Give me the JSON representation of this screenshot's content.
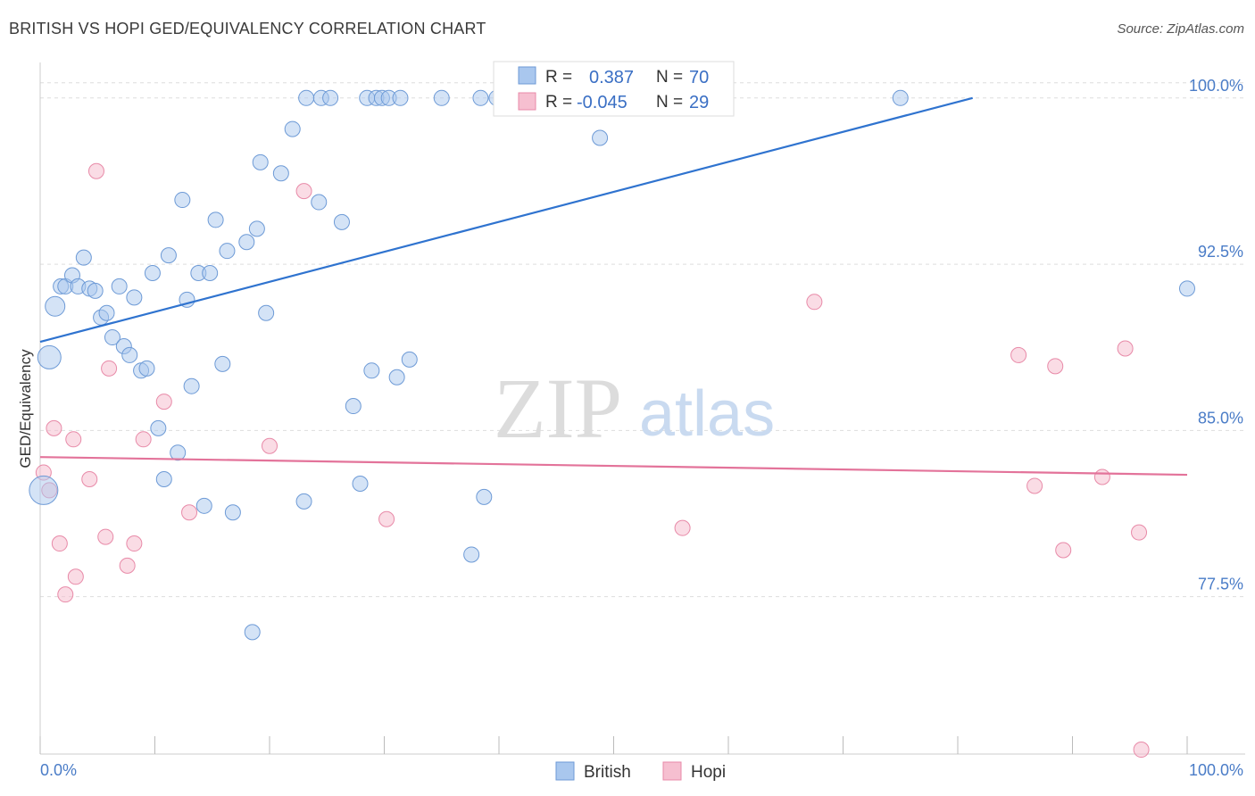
{
  "header": {
    "title": "BRITISH VS HOPI GED/EQUIVALENCY CORRELATION CHART",
    "source": "Source: ZipAtlas.com"
  },
  "watermark": {
    "zip": "ZIP",
    "atlas": "atlas"
  },
  "stats": {
    "british": {
      "r_label": "R =",
      "r_value": "0.387",
      "n_label": "N =",
      "n_value": "70"
    },
    "hopi": {
      "r_label": "R =",
      "r_value": "-0.045",
      "n_label": "N =",
      "n_value": "29"
    }
  },
  "legend": {
    "british": "British",
    "hopi": "Hopi"
  },
  "colors": {
    "british_fill": "#a9c7ee",
    "british_stroke": "#6d9ad6",
    "british_line": "#2f73cf",
    "hopi_fill": "#f6bfd0",
    "hopi_stroke": "#e88aa8",
    "hopi_line": "#e3739a",
    "grid": "#dddddd",
    "axis_label": "#4a7cc7"
  },
  "chart_data": {
    "type": "scatter",
    "ylabel": "GED/Equivalency",
    "xlabel": "",
    "xlim": [
      0,
      100
    ],
    "ylim": [
      70.4,
      101.2
    ],
    "x_tick_labels": [
      "0.0%",
      "100.0%"
    ],
    "y_ticks": [
      77.5,
      85.0,
      92.5,
      100.0
    ],
    "y_tick_labels": [
      "77.5%",
      "85.0%",
      "92.5%",
      "100.0%"
    ],
    "grid": true,
    "legend_position": "bottom-center",
    "series": [
      {
        "name": "British",
        "trend": {
          "x": [
            0,
            81.3
          ],
          "y": [
            89.0,
            100.0
          ]
        },
        "points": [
          {
            "x": 0.3,
            "y": 82.3,
            "s": 16
          },
          {
            "x": 0.8,
            "y": 88.3,
            "s": 13
          },
          {
            "x": 1.3,
            "y": 90.6,
            "s": 11
          },
          {
            "x": 1.8,
            "y": 91.5
          },
          {
            "x": 2.2,
            "y": 91.5
          },
          {
            "x": 2.8,
            "y": 92.0
          },
          {
            "x": 3.3,
            "y": 91.5
          },
          {
            "x": 3.8,
            "y": 92.8
          },
          {
            "x": 4.3,
            "y": 91.4
          },
          {
            "x": 4.8,
            "y": 91.3
          },
          {
            "x": 5.3,
            "y": 90.1
          },
          {
            "x": 5.8,
            "y": 90.3
          },
          {
            "x": 6.3,
            "y": 89.2
          },
          {
            "x": 7.3,
            "y": 88.8
          },
          {
            "x": 7.8,
            "y": 88.4
          },
          {
            "x": 6.9,
            "y": 91.5
          },
          {
            "x": 8.2,
            "y": 91.0
          },
          {
            "x": 8.8,
            "y": 87.7
          },
          {
            "x": 9.3,
            "y": 87.8
          },
          {
            "x": 9.8,
            "y": 92.1
          },
          {
            "x": 10.3,
            "y": 85.1
          },
          {
            "x": 10.8,
            "y": 82.8
          },
          {
            "x": 11.2,
            "y": 92.9
          },
          {
            "x": 12.0,
            "y": 84.0
          },
          {
            "x": 12.4,
            "y": 95.4
          },
          {
            "x": 12.8,
            "y": 90.9
          },
          {
            "x": 13.2,
            "y": 87.0
          },
          {
            "x": 13.8,
            "y": 92.1
          },
          {
            "x": 14.3,
            "y": 81.6
          },
          {
            "x": 14.8,
            "y": 92.1
          },
          {
            "x": 15.3,
            "y": 94.5
          },
          {
            "x": 15.9,
            "y": 88.0
          },
          {
            "x": 16.3,
            "y": 93.1
          },
          {
            "x": 16.8,
            "y": 81.3
          },
          {
            "x": 18.0,
            "y": 93.5
          },
          {
            "x": 18.5,
            "y": 75.9
          },
          {
            "x": 18.9,
            "y": 94.1
          },
          {
            "x": 19.2,
            "y": 97.1
          },
          {
            "x": 19.7,
            "y": 90.3
          },
          {
            "x": 21.0,
            "y": 96.6
          },
          {
            "x": 22.0,
            "y": 98.6
          },
          {
            "x": 23.0,
            "y": 81.8
          },
          {
            "x": 23.2,
            "y": 100.0
          },
          {
            "x": 24.3,
            "y": 95.3
          },
          {
            "x": 24.5,
            "y": 100.0
          },
          {
            "x": 25.3,
            "y": 100.0
          },
          {
            "x": 26.3,
            "y": 94.4
          },
          {
            "x": 27.3,
            "y": 86.1
          },
          {
            "x": 27.9,
            "y": 82.6
          },
          {
            "x": 28.5,
            "y": 100.0
          },
          {
            "x": 28.9,
            "y": 87.7
          },
          {
            "x": 29.3,
            "y": 100.0
          },
          {
            "x": 29.8,
            "y": 100.0
          },
          {
            "x": 30.4,
            "y": 100.0
          },
          {
            "x": 31.1,
            "y": 87.4
          },
          {
            "x": 31.4,
            "y": 100.0
          },
          {
            "x": 32.2,
            "y": 88.2
          },
          {
            "x": 35.0,
            "y": 100.0
          },
          {
            "x": 37.6,
            "y": 79.4
          },
          {
            "x": 38.4,
            "y": 100.0
          },
          {
            "x": 38.7,
            "y": 82.0
          },
          {
            "x": 39.8,
            "y": 100.0
          },
          {
            "x": 40.7,
            "y": 100.0
          },
          {
            "x": 42.0,
            "y": 100.0
          },
          {
            "x": 47.5,
            "y": 100.0
          },
          {
            "x": 47.8,
            "y": 100.0
          },
          {
            "x": 48.2,
            "y": 100.0
          },
          {
            "x": 48.8,
            "y": 98.2
          },
          {
            "x": 75.0,
            "y": 100.0
          },
          {
            "x": 100.0,
            "y": 91.4
          }
        ]
      },
      {
        "name": "Hopi",
        "trend": {
          "x": [
            0,
            100
          ],
          "y": [
            83.8,
            83.0
          ]
        },
        "points": [
          {
            "x": 0.3,
            "y": 83.1
          },
          {
            "x": 0.8,
            "y": 82.3
          },
          {
            "x": 1.2,
            "y": 85.1
          },
          {
            "x": 1.7,
            "y": 79.9
          },
          {
            "x": 2.2,
            "y": 77.6
          },
          {
            "x": 2.9,
            "y": 84.6
          },
          {
            "x": 3.1,
            "y": 78.4
          },
          {
            "x": 4.3,
            "y": 82.8
          },
          {
            "x": 4.9,
            "y": 96.7
          },
          {
            "x": 5.7,
            "y": 80.2
          },
          {
            "x": 6.0,
            "y": 87.8
          },
          {
            "x": 7.6,
            "y": 78.9
          },
          {
            "x": 8.2,
            "y": 79.9
          },
          {
            "x": 9.0,
            "y": 84.6
          },
          {
            "x": 10.8,
            "y": 86.3
          },
          {
            "x": 13.0,
            "y": 81.3
          },
          {
            "x": 20.0,
            "y": 84.3
          },
          {
            "x": 23.0,
            "y": 95.8
          },
          {
            "x": 30.2,
            "y": 81.0
          },
          {
            "x": 56.0,
            "y": 80.6
          },
          {
            "x": 67.5,
            "y": 90.8
          },
          {
            "x": 85.3,
            "y": 88.4
          },
          {
            "x": 86.7,
            "y": 82.5
          },
          {
            "x": 88.5,
            "y": 87.9
          },
          {
            "x": 89.2,
            "y": 79.6
          },
          {
            "x": 92.6,
            "y": 82.9
          },
          {
            "x": 94.6,
            "y": 88.7
          },
          {
            "x": 95.8,
            "y": 80.4
          },
          {
            "x": 96.0,
            "y": 70.6
          }
        ]
      }
    ]
  }
}
